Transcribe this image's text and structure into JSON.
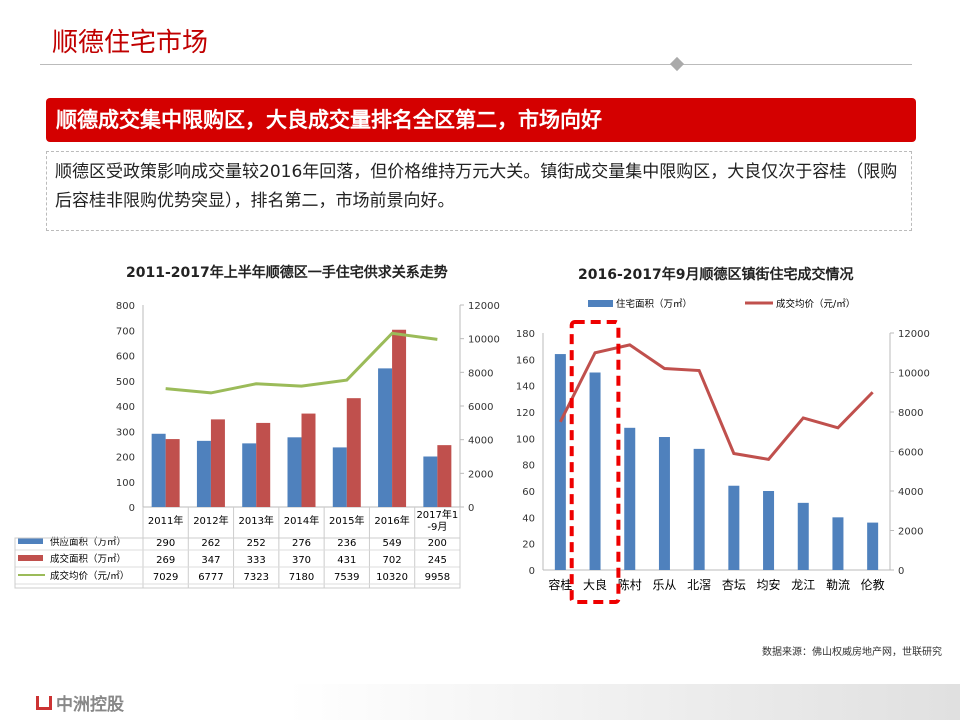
{
  "header": {
    "title": "顺德住宅市场"
  },
  "banner": "顺德成交集中限购区，大良成交量排名全区第二，市场向好",
  "description": "顺德区受政策影响成交量较2016年回落，但价格维持万元大关。镇街成交量集中限购区，大良仅次于容桂（限购后容桂非限购优势突显），排名第二，市场前景向好。",
  "source": "数据来源：佛山权威房地产网，世联研究",
  "logo": "中洲控股",
  "chart_data": [
    {
      "type": "bar+line",
      "title": "2011-2017年上半年顺德区一手住宅供求关系走势",
      "categories": [
        "2011年",
        "2012年",
        "2013年",
        "2014年",
        "2015年",
        "2016年",
        "2017年1-9月"
      ],
      "ylim": [
        0,
        800
      ],
      "yticks": [
        0,
        100,
        200,
        300,
        400,
        500,
        600,
        700,
        800
      ],
      "y2lim": [
        0,
        12000
      ],
      "y2ticks": [
        0,
        2000,
        4000,
        6000,
        8000,
        10000,
        12000
      ],
      "legend": "bottom-table",
      "series": [
        {
          "name": "供应面积（万㎡）",
          "type": "bar",
          "axis": "left",
          "color": "#4f81bd",
          "values": [
            290,
            262,
            252,
            276,
            236,
            549,
            200
          ]
        },
        {
          "name": "成交面积（万㎡）",
          "type": "bar",
          "axis": "left",
          "color": "#c0504d",
          "values": [
            269,
            347,
            333,
            370,
            431,
            702,
            245
          ]
        },
        {
          "name": "成交均价（元/㎡）",
          "type": "line",
          "axis": "right",
          "color": "#9bbb59",
          "values": [
            7029,
            6777,
            7323,
            7180,
            7539,
            10320,
            9958
          ]
        }
      ]
    },
    {
      "type": "bar+line",
      "title": "2016-2017年9月顺德区镇街住宅成交情况",
      "categories": [
        "容桂",
        "大良",
        "陈村",
        "乐从",
        "北滘",
        "杏坛",
        "均安",
        "龙江",
        "勒流",
        "伦教"
      ],
      "ylim": [
        0,
        180
      ],
      "yticks": [
        0,
        20,
        40,
        60,
        80,
        100,
        120,
        140,
        160,
        180
      ],
      "y2lim": [
        0,
        12000
      ],
      "y2ticks": [
        0,
        2000,
        4000,
        6000,
        8000,
        10000,
        12000
      ],
      "legend": "top",
      "highlight": "大良",
      "series": [
        {
          "name": "住宅面积（万㎡）",
          "type": "bar",
          "axis": "left",
          "color": "#4f81bd",
          "values": [
            164,
            150,
            108,
            101,
            92,
            64,
            60,
            51,
            40,
            36
          ]
        },
        {
          "name": "成交均价（元/㎡）",
          "type": "line",
          "axis": "right",
          "color": "#c0504d",
          "values": [
            7500,
            11000,
            11400,
            10200,
            10100,
            5900,
            5600,
            7700,
            7200,
            9000
          ]
        }
      ]
    }
  ]
}
